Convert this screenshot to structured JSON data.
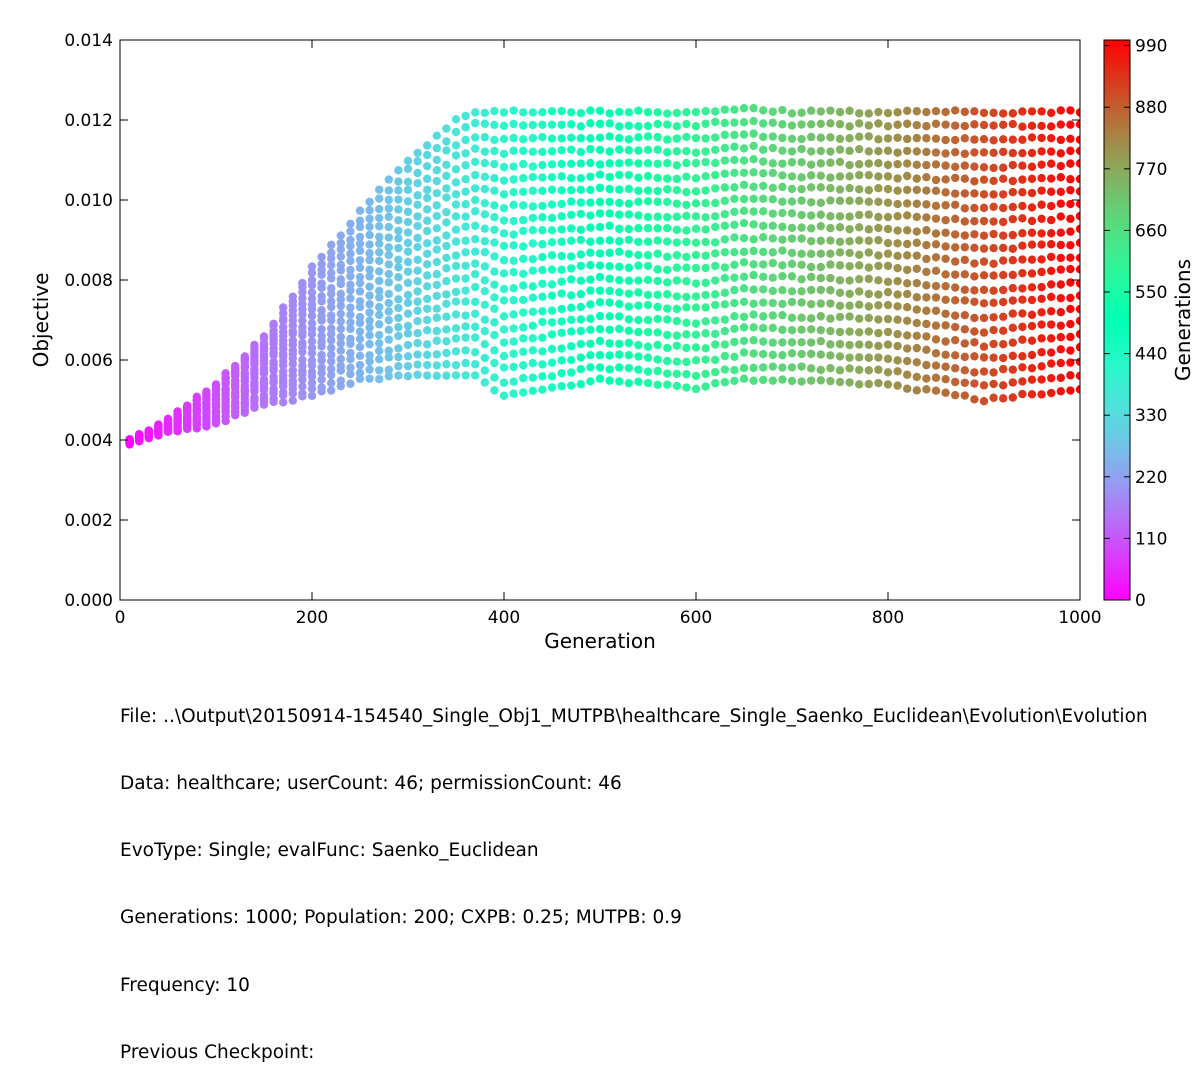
{
  "chart_data": {
    "type": "scatter",
    "xlabel": "Generation",
    "ylabel": "Objective",
    "xlim": [
      0,
      1000
    ],
    "ylim": [
      0,
      0.014
    ],
    "x_ticks": [
      0,
      200,
      400,
      600,
      800,
      1000
    ],
    "x_tick_labels": [
      "0",
      "200",
      "400",
      "600",
      "800",
      "1000"
    ],
    "y_ticks": [
      0,
      0.002,
      0.004,
      0.006,
      0.008,
      0.01,
      0.012,
      0.014
    ],
    "y_tick_labels": [
      "0.000",
      "0.002",
      "0.004",
      "0.006",
      "0.008",
      "0.010",
      "0.012",
      "0.014"
    ],
    "grid": false,
    "colormap": "rainbow",
    "sampling_frequency": 10,
    "colorbar": {
      "label": "Generations",
      "range": [
        0,
        1000
      ],
      "ticks": [
        0,
        110,
        220,
        330,
        440,
        550,
        660,
        770,
        880,
        990
      ],
      "tick_labels": [
        "0",
        "110",
        "220",
        "330",
        "440",
        "550",
        "660",
        "770",
        "880",
        "990"
      ]
    },
    "series_summary": [
      {
        "generation": 10,
        "min": 0.0039,
        "max": 0.004
      },
      {
        "generation": 50,
        "min": 0.0042,
        "max": 0.0045
      },
      {
        "generation": 100,
        "min": 0.0044,
        "max": 0.0054
      },
      {
        "generation": 150,
        "min": 0.0049,
        "max": 0.0066
      },
      {
        "generation": 200,
        "min": 0.0051,
        "max": 0.0083
      },
      {
        "generation": 250,
        "min": 0.0055,
        "max": 0.0097
      },
      {
        "generation": 300,
        "min": 0.0056,
        "max": 0.011
      },
      {
        "generation": 350,
        "min": 0.0056,
        "max": 0.012
      },
      {
        "generation": 370,
        "min": 0.0056,
        "max": 0.0122
      },
      {
        "generation": 400,
        "min": 0.0051,
        "max": 0.0122
      },
      {
        "generation": 500,
        "min": 0.0055,
        "max": 0.0122
      },
      {
        "generation": 600,
        "min": 0.0053,
        "max": 0.0122
      },
      {
        "generation": 650,
        "min": 0.0055,
        "max": 0.0123
      },
      {
        "generation": 700,
        "min": 0.0055,
        "max": 0.0122
      },
      {
        "generation": 800,
        "min": 0.0054,
        "max": 0.0122
      },
      {
        "generation": 900,
        "min": 0.005,
        "max": 0.0122
      },
      {
        "generation": 1000,
        "min": 0.0053,
        "max": 0.0122
      }
    ]
  },
  "footer": {
    "file": "File: ..\\Output\\20150914-154540_Single_Obj1_MUTPB\\healthcare_Single_Saenko_Euclidean\\Evolution\\Evolution",
    "data": "Data: healthcare; userCount: 46; permissionCount: 46",
    "evo": "EvoType: Single; evalFunc: Saenko_Euclidean",
    "params": "Generations: 1000; Population: 200; CXPB: 0.25; MUTPB: 0.9",
    "frequency": "Frequency: 10",
    "checkpoint": "Previous Checkpoint:"
  }
}
